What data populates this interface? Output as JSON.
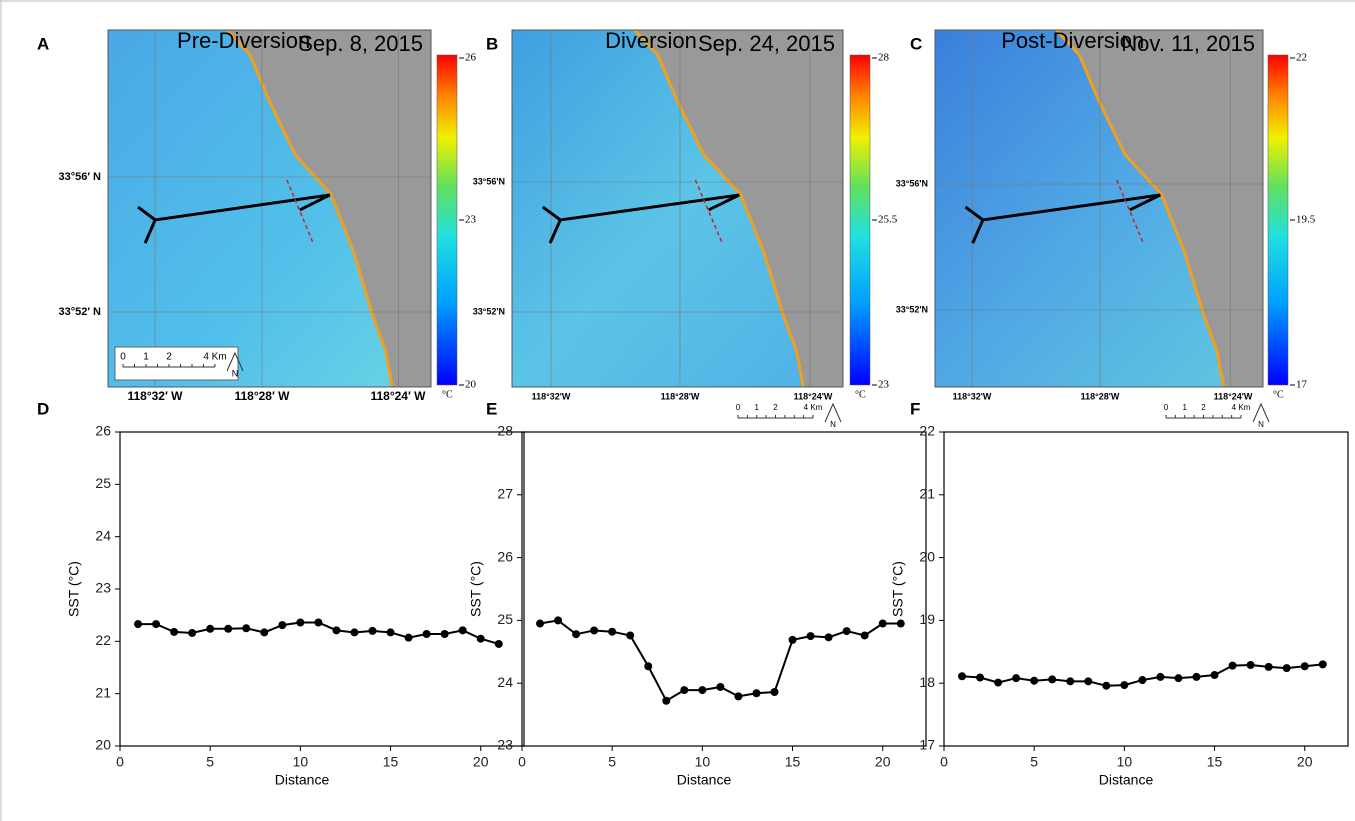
{
  "maps": [
    {
      "letter": "A",
      "title": "Pre-Diversion",
      "date": "Sep. 8, 2015",
      "colorbar": {
        "max": 26,
        "mid": 23,
        "min": 20,
        "unit": "°C"
      },
      "lat_labels": [
        "33°56′ N",
        "33°52′ N"
      ],
      "lon_labels": [
        "118°32′ W",
        "118°28′ W",
        "118°24′ W"
      ],
      "scale_bar": {
        "labels": [
          "0",
          "1",
          "2",
          "4 Km"
        ],
        "north": "N"
      }
    },
    {
      "letter": "B",
      "title": "Diversion",
      "date": "Sep. 24, 2015",
      "colorbar": {
        "max": 28,
        "mid": 25.5,
        "min": 23,
        "unit": "°C"
      },
      "lat_labels": [
        "33°56'N",
        "33°52'N"
      ],
      "lon_labels": [
        "118°32'W",
        "118°28'W",
        "118°24'W"
      ],
      "scale_bar": {
        "labels": [
          "0",
          "1",
          "2",
          "4 Km"
        ],
        "north": "N"
      }
    },
    {
      "letter": "C",
      "title": "Post-Diversion",
      "date": "Nov. 11, 2015",
      "colorbar": {
        "max": 22,
        "mid": 19.5,
        "min": 17,
        "unit": "°C"
      },
      "lat_labels": [
        "33°56'N",
        "33°52'N"
      ],
      "lon_labels": [
        "118°32'W",
        "118°28'W",
        "118°24'W"
      ],
      "scale_bar": {
        "labels": [
          "0",
          "1",
          "2",
          "4 Km"
        ],
        "north": "N"
      }
    }
  ],
  "chart_data": [
    {
      "type": "line",
      "letter": "D",
      "x_label": "Distance",
      "y_label": "SST (°C)",
      "x": [
        1,
        2,
        3,
        4,
        5,
        6,
        7,
        8,
        9,
        10,
        11,
        12,
        13,
        14,
        15,
        16,
        17,
        18,
        19,
        20,
        21
      ],
      "values": [
        22.33,
        22.33,
        22.18,
        22.16,
        22.24,
        22.24,
        22.25,
        22.17,
        22.31,
        22.36,
        22.36,
        22.21,
        22.17,
        22.2,
        22.17,
        22.07,
        22.14,
        22.14,
        22.21,
        22.05,
        21.95
      ],
      "color": "#000000",
      "xlim": [
        0,
        22.4
      ],
      "xticks": [
        0,
        5,
        10,
        15,
        20
      ],
      "ylim": [
        20,
        26
      ],
      "yticks": [
        20,
        21,
        22,
        23,
        24,
        25,
        26
      ]
    },
    {
      "type": "line",
      "letter": "E",
      "x_label": "Distance",
      "y_label": "SST (°C)",
      "x": [
        1,
        2,
        3,
        4,
        5,
        6,
        7,
        8,
        9,
        10,
        11,
        12,
        13,
        14,
        15,
        16,
        17,
        18,
        19,
        20,
        21
      ],
      "values": [
        24.95,
        25.0,
        24.78,
        24.84,
        24.82,
        24.76,
        24.27,
        23.72,
        23.89,
        23.89,
        23.94,
        23.79,
        23.84,
        23.86,
        24.69,
        24.75,
        24.73,
        24.83,
        24.76,
        24.95,
        24.95
      ],
      "color": "#000000",
      "xlim": [
        0,
        22.4
      ],
      "xticks": [
        0,
        5,
        10,
        15,
        20
      ],
      "ylim": [
        23,
        28
      ],
      "yticks": [
        23,
        24,
        25,
        26,
        27,
        28
      ]
    },
    {
      "type": "line",
      "letter": "F",
      "x_label": "Distance",
      "y_label": "SST (°C)",
      "x": [
        1,
        2,
        3,
        4,
        5,
        6,
        7,
        8,
        9,
        10,
        11,
        12,
        13,
        14,
        15,
        16,
        17,
        18,
        19,
        20,
        21
      ],
      "values": [
        18.11,
        18.09,
        18.01,
        18.08,
        18.04,
        18.06,
        18.03,
        18.03,
        17.96,
        17.97,
        18.05,
        18.1,
        18.08,
        18.1,
        18.13,
        18.28,
        18.29,
        18.26,
        18.24,
        18.27,
        18.3
      ],
      "color": "#000000",
      "xlim": [
        0,
        22.4
      ],
      "xticks": [
        0,
        5,
        10,
        15,
        20
      ],
      "ylim": [
        17,
        22
      ],
      "yticks": [
        17,
        18,
        19,
        20,
        21,
        22
      ]
    }
  ]
}
